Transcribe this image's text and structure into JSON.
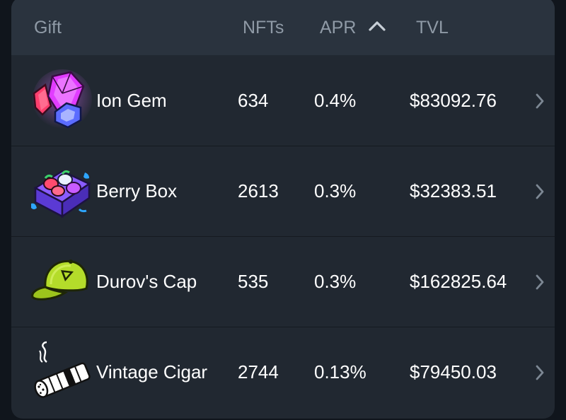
{
  "header": {
    "gift": "Gift",
    "nfts": "NFTs",
    "apr": "APR",
    "tvl": "TVL",
    "sort_icon": "chevron-up-icon"
  },
  "rows": [
    {
      "name": "Ion Gem",
      "nfts": "634",
      "apr": "0.4%",
      "tvl": "$83092.76",
      "icon": "ion-gem-icon"
    },
    {
      "name": "Berry Box",
      "nfts": "2613",
      "apr": "0.3%",
      "tvl": "$32383.51",
      "icon": "berry-box-icon"
    },
    {
      "name": "Durov's Cap",
      "nfts": "535",
      "apr": "0.3%",
      "tvl": "$162825.64",
      "icon": "durovs-cap-icon"
    },
    {
      "name": "Vintage Cigar",
      "nfts": "2744",
      "apr": "0.13%",
      "tvl": "$79450.03",
      "icon": "vintage-cigar-icon"
    }
  ],
  "colors": {
    "background": "#10151c",
    "card": "#212831",
    "header": "#2a333e",
    "header_text": "#8f9aa6",
    "text": "#ffffff",
    "chevron": "#7d8894"
  }
}
